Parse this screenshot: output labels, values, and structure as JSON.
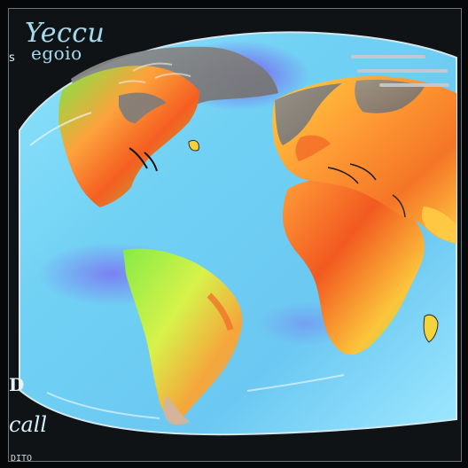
{
  "title": {
    "line1": "Yeccu",
    "line2": "egoio"
  },
  "marks": {
    "left_top": "s",
    "left_mid": "D",
    "left_bottom": "call",
    "bottom_caption": "DITO"
  },
  "colors": {
    "ocean_light": "#79d8f5",
    "ocean_mid": "#59b8ef",
    "ocean_purple": "#6b62ef",
    "land_green": "#8eea41",
    "land_yellow": "#f7d63a",
    "land_orange": "#ff9838",
    "land_red": "#f55a1c",
    "gray_cap": "#9a9a9a"
  }
}
